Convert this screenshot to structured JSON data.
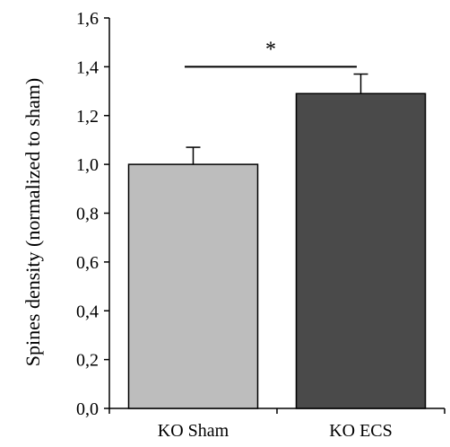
{
  "chart_data": {
    "type": "bar",
    "categories": [
      "KO Sham",
      "KO ECS"
    ],
    "values": [
      1.0,
      1.29
    ],
    "errors": [
      0.07,
      0.08
    ],
    "ylabel": "Spines density (normalized to sham)",
    "xlabel": "",
    "ylim": [
      0,
      1.6
    ],
    "yticks": [
      "0,0",
      "0,2",
      "0,4",
      "0,6",
      "0,8",
      "1,0",
      "1,2",
      "1,4",
      "1,6"
    ],
    "bar_colors": [
      "#bdbdbd",
      "#4a4a4a"
    ],
    "significance": {
      "marker": "*",
      "between": [
        "KO Sham",
        "KO ECS"
      ],
      "level": 1.4
    },
    "grid": false,
    "legend": "none"
  }
}
